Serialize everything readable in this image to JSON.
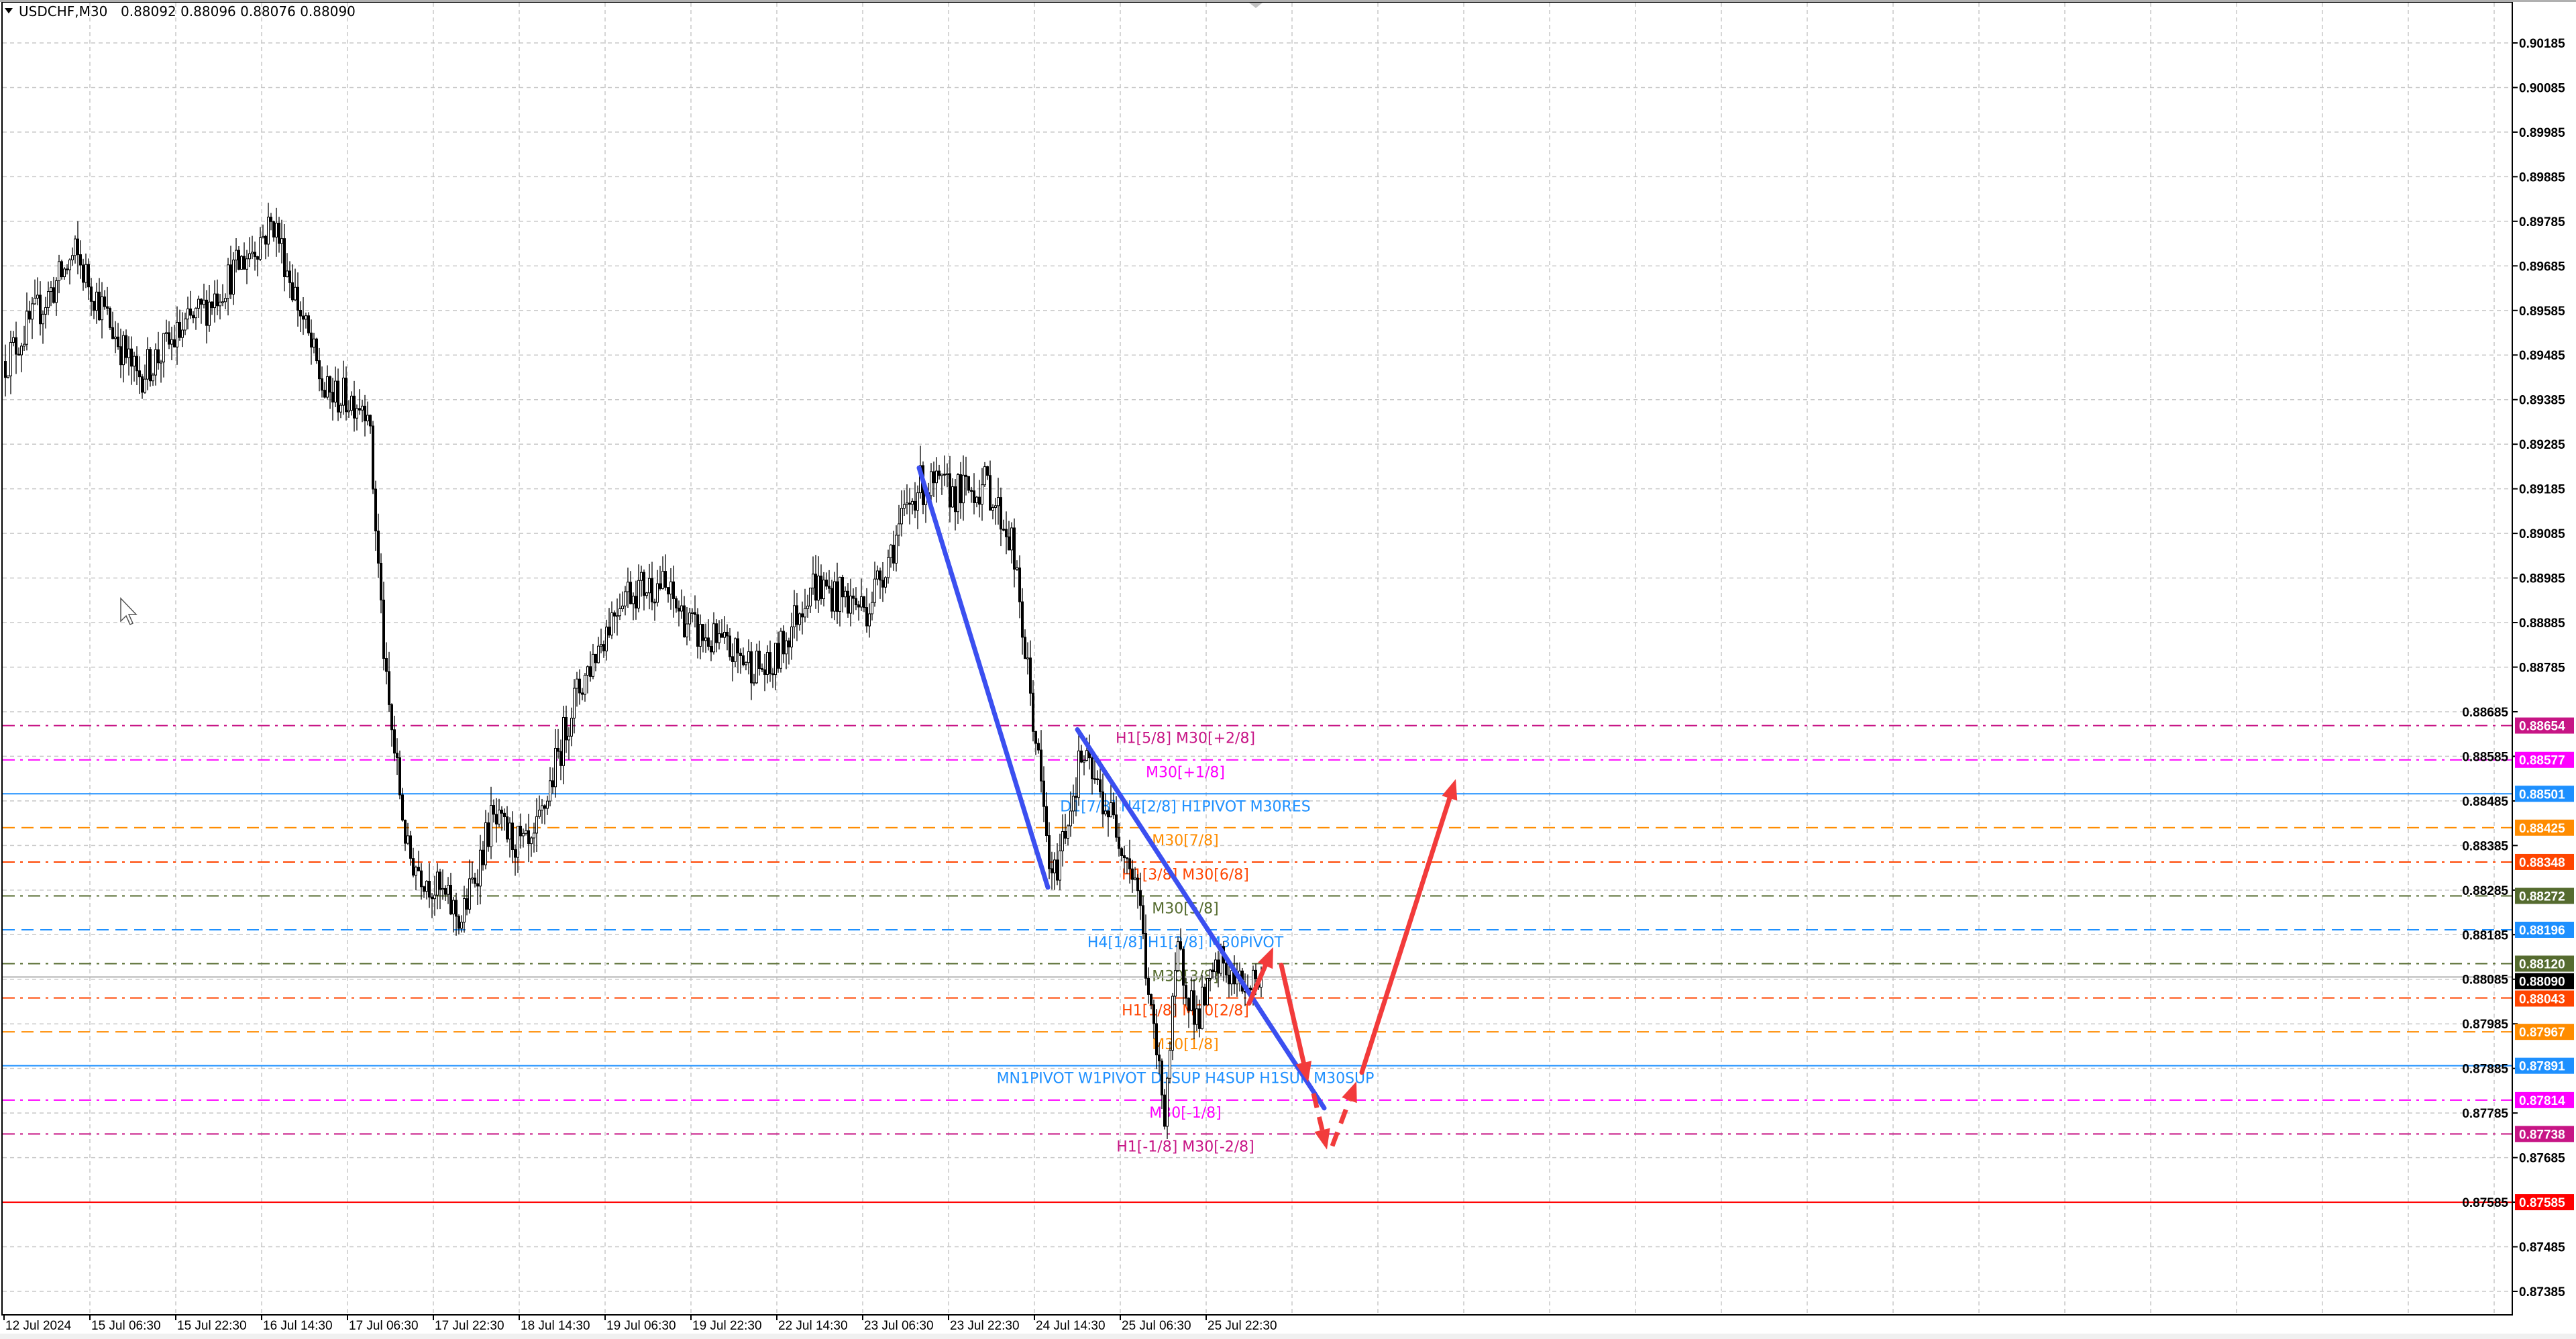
{
  "header": {
    "symbol": "USDCHF,M30",
    "ohlc": "0.88092 0.88096 0.88076 0.88090",
    "menu_icon": "triangle-down-icon"
  },
  "chart_data": {
    "type": "candlestick",
    "symbol": "USDCHF",
    "timeframe": "M30",
    "ylim": [
      0.87335,
      0.90235
    ],
    "y_ticks": [
      "0.90185",
      "0.90085",
      "0.89985",
      "0.89885",
      "0.89785",
      "0.89685",
      "0.89585",
      "0.89485",
      "0.89385",
      "0.89285",
      "0.89185",
      "0.89085",
      "0.88985",
      "0.88885",
      "0.88785",
      "0.88685",
      "0.88585",
      "0.88485",
      "0.88385",
      "0.88285",
      "0.88185",
      "0.88085",
      "0.87985",
      "0.87885",
      "0.87785",
      "0.87685",
      "0.87585",
      "0.87485",
      "0.87385"
    ],
    "x_ticks": [
      "12 Jul 2024",
      "15 Jul 06:30",
      "15 Jul 22:30",
      "16 Jul 14:30",
      "17 Jul 06:30",
      "17 Jul 22:30",
      "18 Jul 14:30",
      "19 Jul 06:30",
      "19 Jul 22:30",
      "22 Jul 14:30",
      "23 Jul 06:30",
      "23 Jul 22:30",
      "24 Jul 14:30",
      "25 Jul 06:30",
      "25 Jul 22:30"
    ],
    "bars_per_x_tick": 32,
    "grid": true,
    "bull_color": "#ffffff",
    "bear_color": "#000000",
    "price_path": [
      [
        0,
        0.89471
      ],
      [
        26,
        0.8971
      ],
      [
        49,
        0.89434
      ],
      [
        73,
        0.89581
      ],
      [
        100,
        0.89784
      ],
      [
        119,
        0.89397
      ],
      [
        135,
        0.8938
      ],
      [
        142,
        0.88734
      ],
      [
        150,
        0.88365
      ],
      [
        170,
        0.88218
      ],
      [
        181,
        0.88439
      ],
      [
        196,
        0.88365
      ],
      [
        211,
        0.88697
      ],
      [
        230,
        0.88955
      ],
      [
        244,
        0.88973
      ],
      [
        257,
        0.88863
      ],
      [
        285,
        0.88771
      ],
      [
        300,
        0.88973
      ],
      [
        321,
        0.88918
      ],
      [
        340,
        0.89194
      ],
      [
        355,
        0.89176
      ],
      [
        366,
        0.89194
      ],
      [
        375,
        0.89066
      ],
      [
        384,
        0.88623
      ],
      [
        390,
        0.88292
      ],
      [
        401,
        0.88586
      ],
      [
        416,
        0.88402
      ],
      [
        422,
        0.88292
      ],
      [
        427,
        0.87997
      ],
      [
        432,
        0.87794
      ],
      [
        437,
        0.88143
      ],
      [
        444,
        0.87997
      ],
      [
        453,
        0.88125
      ],
      [
        459,
        0.8807
      ],
      [
        468,
        0.8809
      ]
    ],
    "current_price": {
      "value": "0.88090",
      "color": "#000000"
    },
    "levels": [
      {
        "price": 0.88654,
        "tag": "0.88654",
        "color": "#c71585",
        "style": "dashdot",
        "label": "H1[5/8] M30[+2/8]"
      },
      {
        "price": 0.88577,
        "tag": "0.88577",
        "color": "#ff00ff",
        "style": "dashdot",
        "label": "M30[+1/8]"
      },
      {
        "price": 0.88501,
        "tag": "0.88501",
        "color": "#1e90ff",
        "style": "solid",
        "label": "D1[7/8] H4[2/8] H1PIVOT M30RES"
      },
      {
        "price": 0.88425,
        "tag": "0.88425",
        "color": "#ff8c00",
        "style": "dash",
        "label": "M30[7/8]"
      },
      {
        "price": 0.88348,
        "tag": "0.88348",
        "color": "#ff4500",
        "style": "dashdot",
        "label": "H1[3/8] M30[6/8]"
      },
      {
        "price": 0.88272,
        "tag": "0.88272",
        "color": "#556b2f",
        "style": "dashdot",
        "label": "M30[5/8]"
      },
      {
        "price": 0.88196,
        "tag": "0.88196",
        "color": "#1e90ff",
        "style": "dash",
        "label": "H4[1/8] H1[2/8] M30PIVOT"
      },
      {
        "price": 0.8812,
        "tag": "0.88120",
        "color": "#556b2f",
        "style": "dashdot",
        "label": "M30[3/8]"
      },
      {
        "price": 0.88043,
        "tag": "0.88043",
        "color": "#ff4500",
        "style": "dashdot",
        "label": "H1[1/8] M30[2/8]"
      },
      {
        "price": 0.87967,
        "tag": "0.87967",
        "color": "#ff8c00",
        "style": "dash",
        "label": "M30[1/8]"
      },
      {
        "price": 0.87891,
        "tag": "0.87891",
        "color": "#1e90ff",
        "style": "solid",
        "label": "MN1PIVOT W1PIVOT D1SUP H4SUP H1SUP M30SUP"
      },
      {
        "price": 0.87814,
        "tag": "0.87814",
        "color": "#ff00ff",
        "style": "dashdot",
        "label": "M30[-1/8]"
      },
      {
        "price": 0.87738,
        "tag": "0.87738",
        "color": "#c71585",
        "style": "dashdot",
        "label": "H1[-1/8] M30[-2/8]"
      },
      {
        "price": 0.87585,
        "tag": "0.87585",
        "color": "#ff0000",
        "style": "solid",
        "label": ""
      }
    ],
    "trendlines": [
      {
        "color": "#3b4ff0",
        "from": [
          341,
          0.89232
        ],
        "to": [
          389,
          0.88291
        ]
      },
      {
        "color": "#3b4ff0",
        "from": [
          400,
          0.88645
        ],
        "to": [
          492,
          0.87796
        ]
      }
    ],
    "arrows": [
      {
        "color": "#f23b3b",
        "dashed": false,
        "from": [
          464,
          0.88031
        ],
        "to": [
          473,
          0.88157
        ]
      },
      {
        "color": "#f23b3b",
        "dashed": false,
        "from": [
          476,
          0.88117
        ],
        "to": [
          486,
          0.87854
        ]
      },
      {
        "color": "#f23b3b",
        "dashed": true,
        "from": [
          488,
          0.87829
        ],
        "to": [
          493,
          0.87703
        ]
      },
      {
        "color": "#f23b3b",
        "dashed": true,
        "from": [
          495,
          0.87711
        ],
        "to": [
          504,
          0.87856
        ]
      },
      {
        "color": "#f23b3b",
        "dashed": false,
        "from": [
          506,
          0.87876
        ],
        "to": [
          541,
          0.88534
        ]
      }
    ]
  }
}
